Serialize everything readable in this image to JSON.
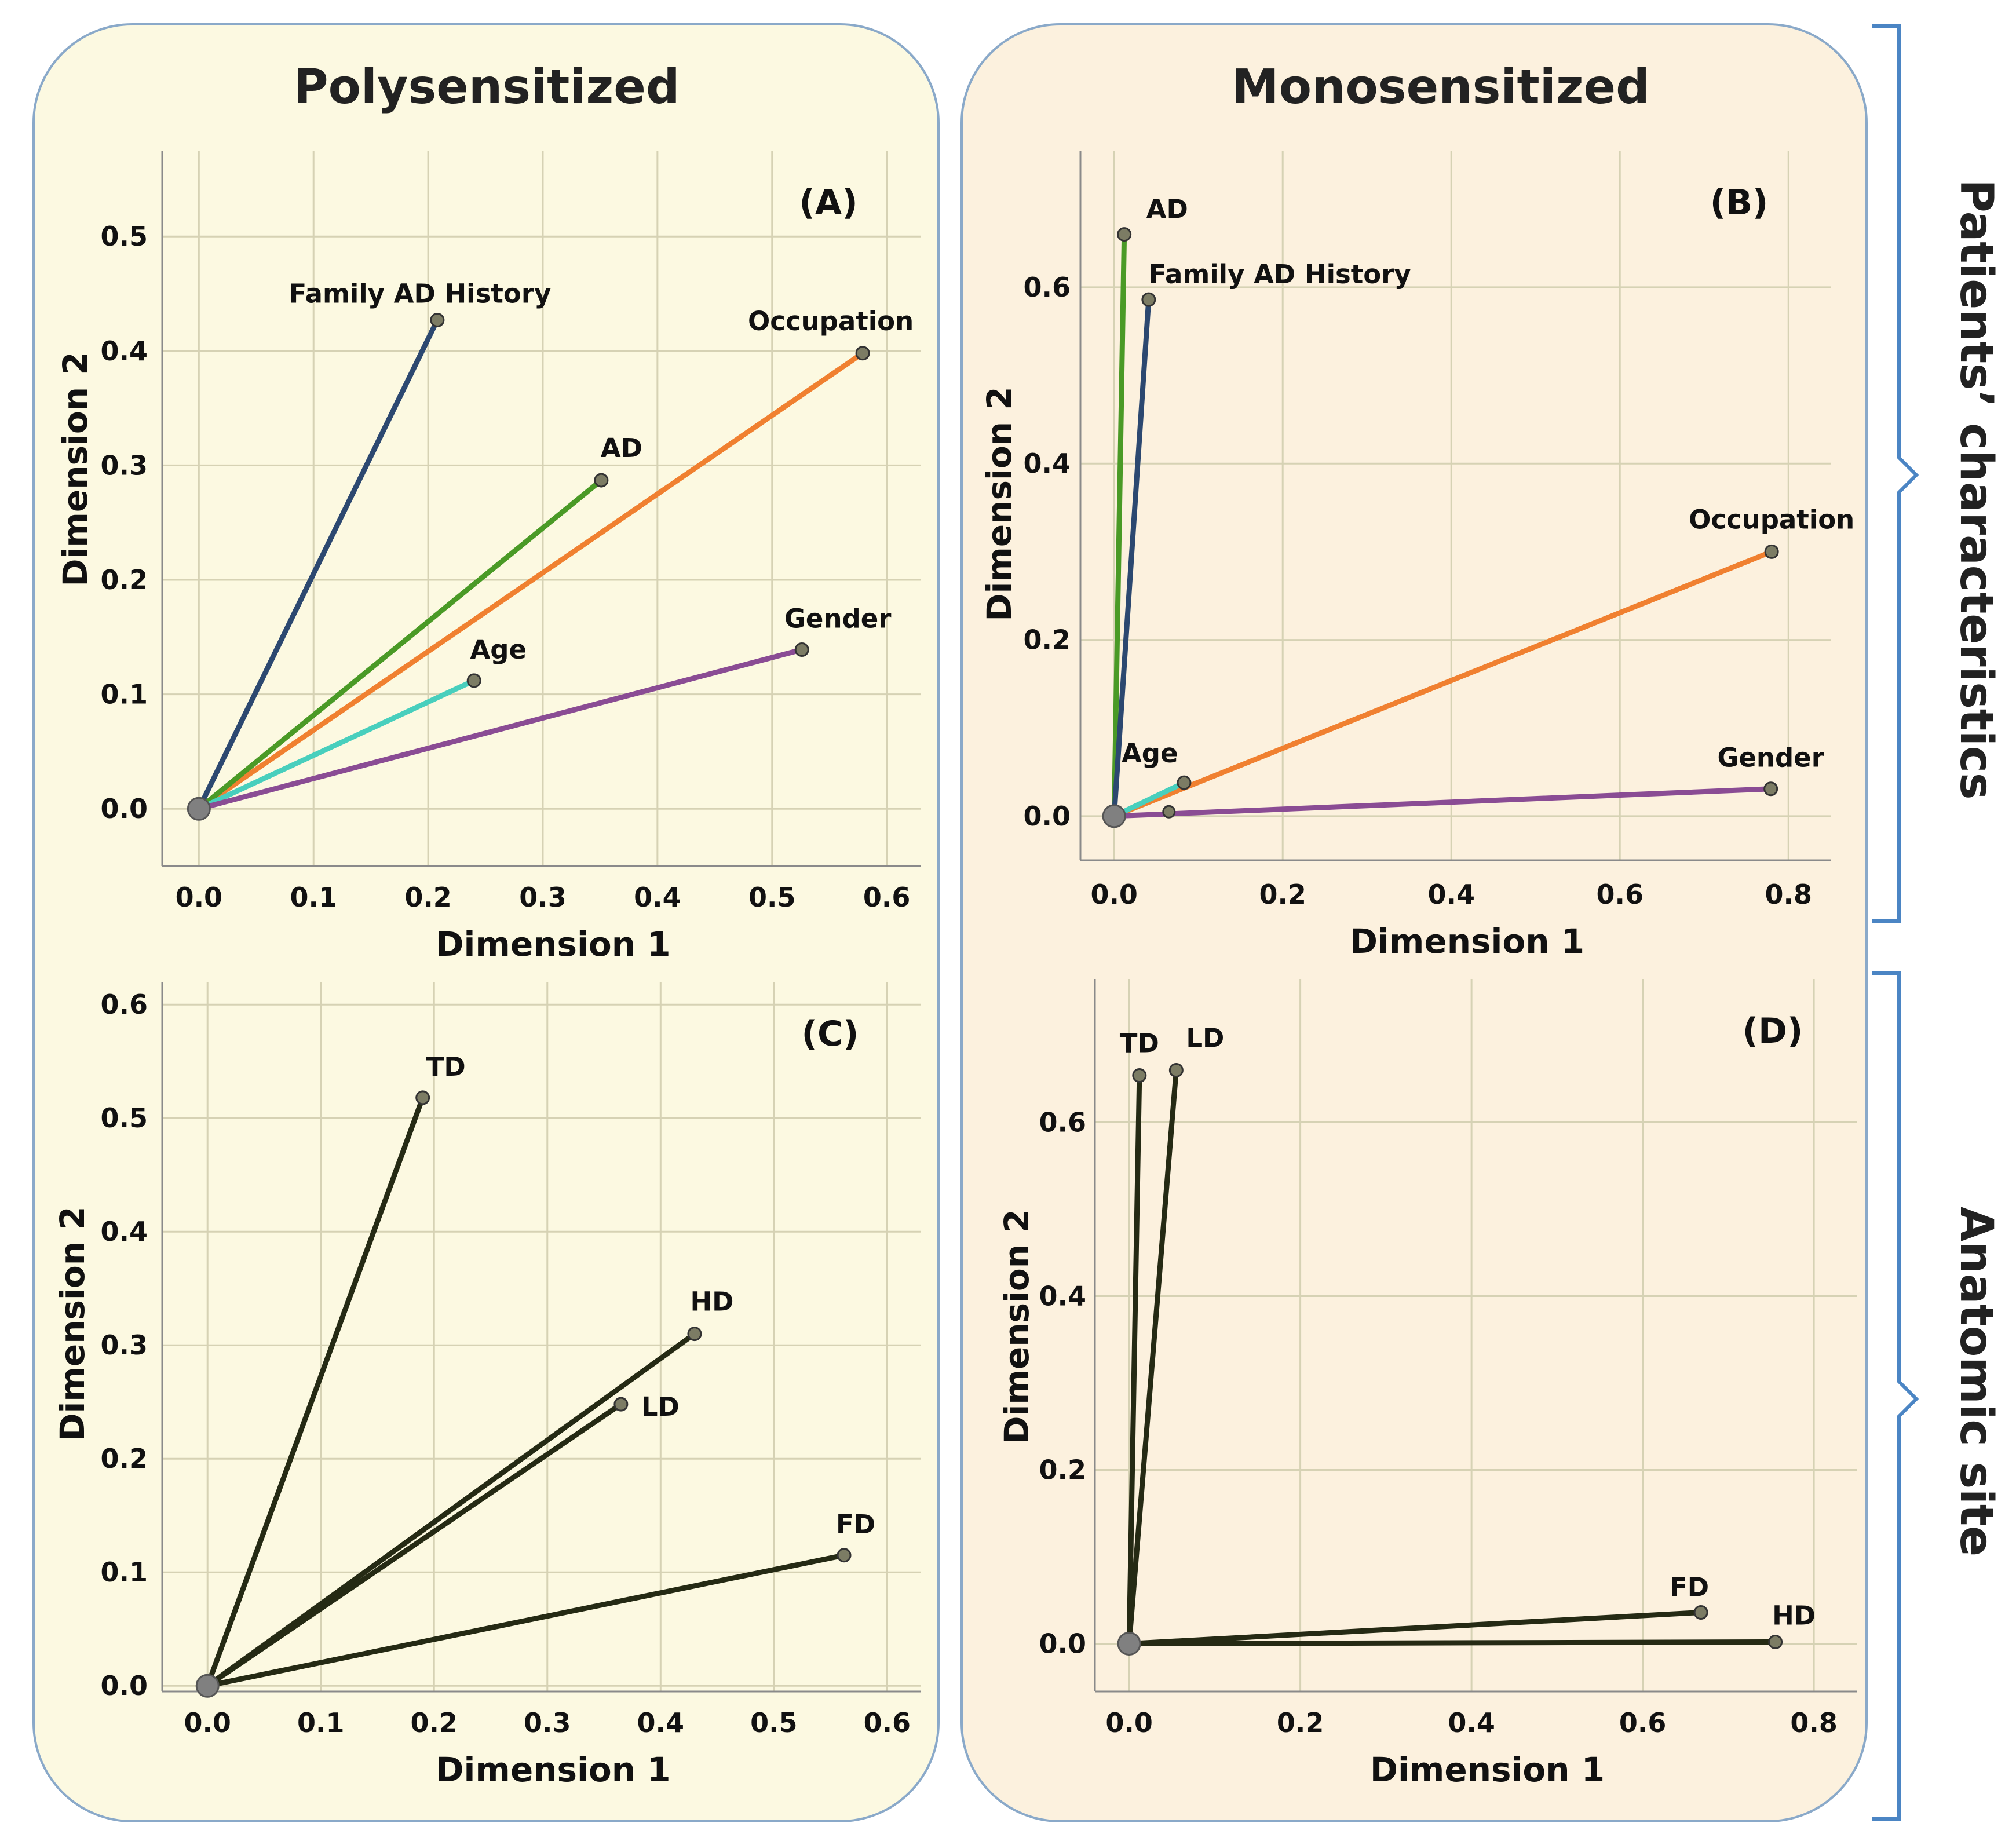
{
  "figure": {
    "col_titles": [
      "Polysensitized",
      "Monosensitized"
    ],
    "row_labels": [
      "Patients’ characteristics",
      "Anatomic site"
    ],
    "colors": {
      "left_bg": "#fcf9e1",
      "right_bg": "#fcf1de",
      "border": "#8aa9c9",
      "brace": "#4b85c4"
    }
  },
  "chart_data": [
    {
      "id": "A",
      "type": "scatter",
      "panel_label": "(A)",
      "xlabel": "Dimension 1",
      "ylabel": "Dimension 2",
      "xlim": [
        -0.032,
        0.63
      ],
      "ylim": [
        -0.05,
        0.575
      ],
      "xticks": [
        0.0,
        0.1,
        0.2,
        0.3,
        0.4,
        0.5,
        0.6
      ],
      "xtick_labels": [
        "0.0",
        "0.1",
        "0.2",
        "0.3",
        "0.4",
        "0.5",
        "0.6"
      ],
      "yticks": [
        0.0,
        0.1,
        0.2,
        0.3,
        0.4,
        0.5
      ],
      "ytick_labels": [
        "0.0",
        "0.1",
        "0.2",
        "0.3",
        "0.4",
        "0.5"
      ],
      "origin": [
        0,
        0
      ],
      "vectors": [
        {
          "name": "Family AD History",
          "x": 0.208,
          "y": 0.427,
          "color": "#2c4870"
        },
        {
          "name": "Occupation",
          "x": 0.579,
          "y": 0.398,
          "color": "#f08030"
        },
        {
          "name": "AD",
          "x": 0.351,
          "y": 0.287,
          "color": "#4a9a26"
        },
        {
          "name": "Age",
          "x": 0.24,
          "y": 0.112,
          "color": "#48cfbd"
        },
        {
          "name": "Gender",
          "x": 0.526,
          "y": 0.139,
          "color": "#8a4c94"
        }
      ]
    },
    {
      "id": "B",
      "type": "scatter",
      "panel_label": "(B)",
      "xlabel": "Dimension 1",
      "ylabel": "Dimension 2",
      "xlim": [
        -0.04,
        0.85
      ],
      "ylim": [
        -0.05,
        0.755
      ],
      "xticks": [
        0.0,
        0.2,
        0.4,
        0.6,
        0.8
      ],
      "xtick_labels": [
        "0.0",
        "0.2",
        "0.4",
        "0.6",
        "0.8"
      ],
      "yticks": [
        0.0,
        0.2,
        0.4,
        0.6
      ],
      "ytick_labels": [
        "0.0",
        "0.2",
        "0.4",
        "0.6"
      ],
      "origin": [
        0,
        0
      ],
      "vectors": [
        {
          "name": "AD",
          "x": 0.012,
          "y": 0.66,
          "color": "#4a9a26"
        },
        {
          "name": "Family AD History",
          "x": 0.041,
          "y": 0.586,
          "color": "#2c4870"
        },
        {
          "name": "Occupation",
          "x": 0.78,
          "y": 0.3,
          "color": "#f08030"
        },
        {
          "name": "Age",
          "x": 0.083,
          "y": 0.038,
          "color": "#48cfbd"
        },
        {
          "name": "Gender",
          "x": 0.779,
          "y": 0.031,
          "color": "#8a4c94"
        }
      ],
      "extra_points": [
        {
          "name": "",
          "x": 0.065,
          "y": 0.005,
          "color": "#8a4c94"
        }
      ]
    },
    {
      "id": "C",
      "type": "scatter",
      "panel_label": "(C)",
      "xlabel": "Dimension 1",
      "ylabel": "Dimension 2",
      "xlim": [
        -0.04,
        0.63
      ],
      "ylim": [
        -0.005,
        0.62
      ],
      "xticks": [
        0.0,
        0.1,
        0.2,
        0.3,
        0.4,
        0.5,
        0.6
      ],
      "xtick_labels": [
        "0.0",
        "0.1",
        "0.2",
        "0.3",
        "0.4",
        "0.5",
        "0.6"
      ],
      "yticks": [
        0.0,
        0.1,
        0.2,
        0.3,
        0.4,
        0.5,
        0.6
      ],
      "ytick_labels": [
        "0.0",
        "0.1",
        "0.2",
        "0.3",
        "0.4",
        "0.5",
        "0.6"
      ],
      "origin": [
        0,
        0
      ],
      "vectors": [
        {
          "name": "TD",
          "x": 0.19,
          "y": 0.518,
          "color": "#252a14"
        },
        {
          "name": "HD",
          "x": 0.43,
          "y": 0.31,
          "color": "#252a14"
        },
        {
          "name": "LD",
          "x": 0.365,
          "y": 0.248,
          "color": "#252a14"
        },
        {
          "name": "FD",
          "x": 0.562,
          "y": 0.115,
          "color": "#252a14"
        }
      ]
    },
    {
      "id": "D",
      "type": "scatter",
      "panel_label": "(D)",
      "xlabel": "Dimension 1",
      "ylabel": "Dimension 2",
      "xlim": [
        -0.04,
        0.85
      ],
      "ylim": [
        -0.055,
        0.765
      ],
      "xticks": [
        0.0,
        0.2,
        0.4,
        0.6,
        0.8
      ],
      "xtick_labels": [
        "0.0",
        "0.2",
        "0.4",
        "0.6",
        "0.8"
      ],
      "yticks": [
        0.0,
        0.2,
        0.4,
        0.6
      ],
      "ytick_labels": [
        "0.0",
        "0.2",
        "0.4",
        "0.6"
      ],
      "origin": [
        0,
        0
      ],
      "vectors": [
        {
          "name": "TD",
          "x": 0.012,
          "y": 0.654,
          "color": "#252a14"
        },
        {
          "name": "LD",
          "x": 0.055,
          "y": 0.66,
          "color": "#252a14"
        },
        {
          "name": "FD",
          "x": 0.668,
          "y": 0.036,
          "color": "#252a14"
        },
        {
          "name": "HD",
          "x": 0.755,
          "y": 0.002,
          "color": "#252a14"
        }
      ]
    }
  ]
}
